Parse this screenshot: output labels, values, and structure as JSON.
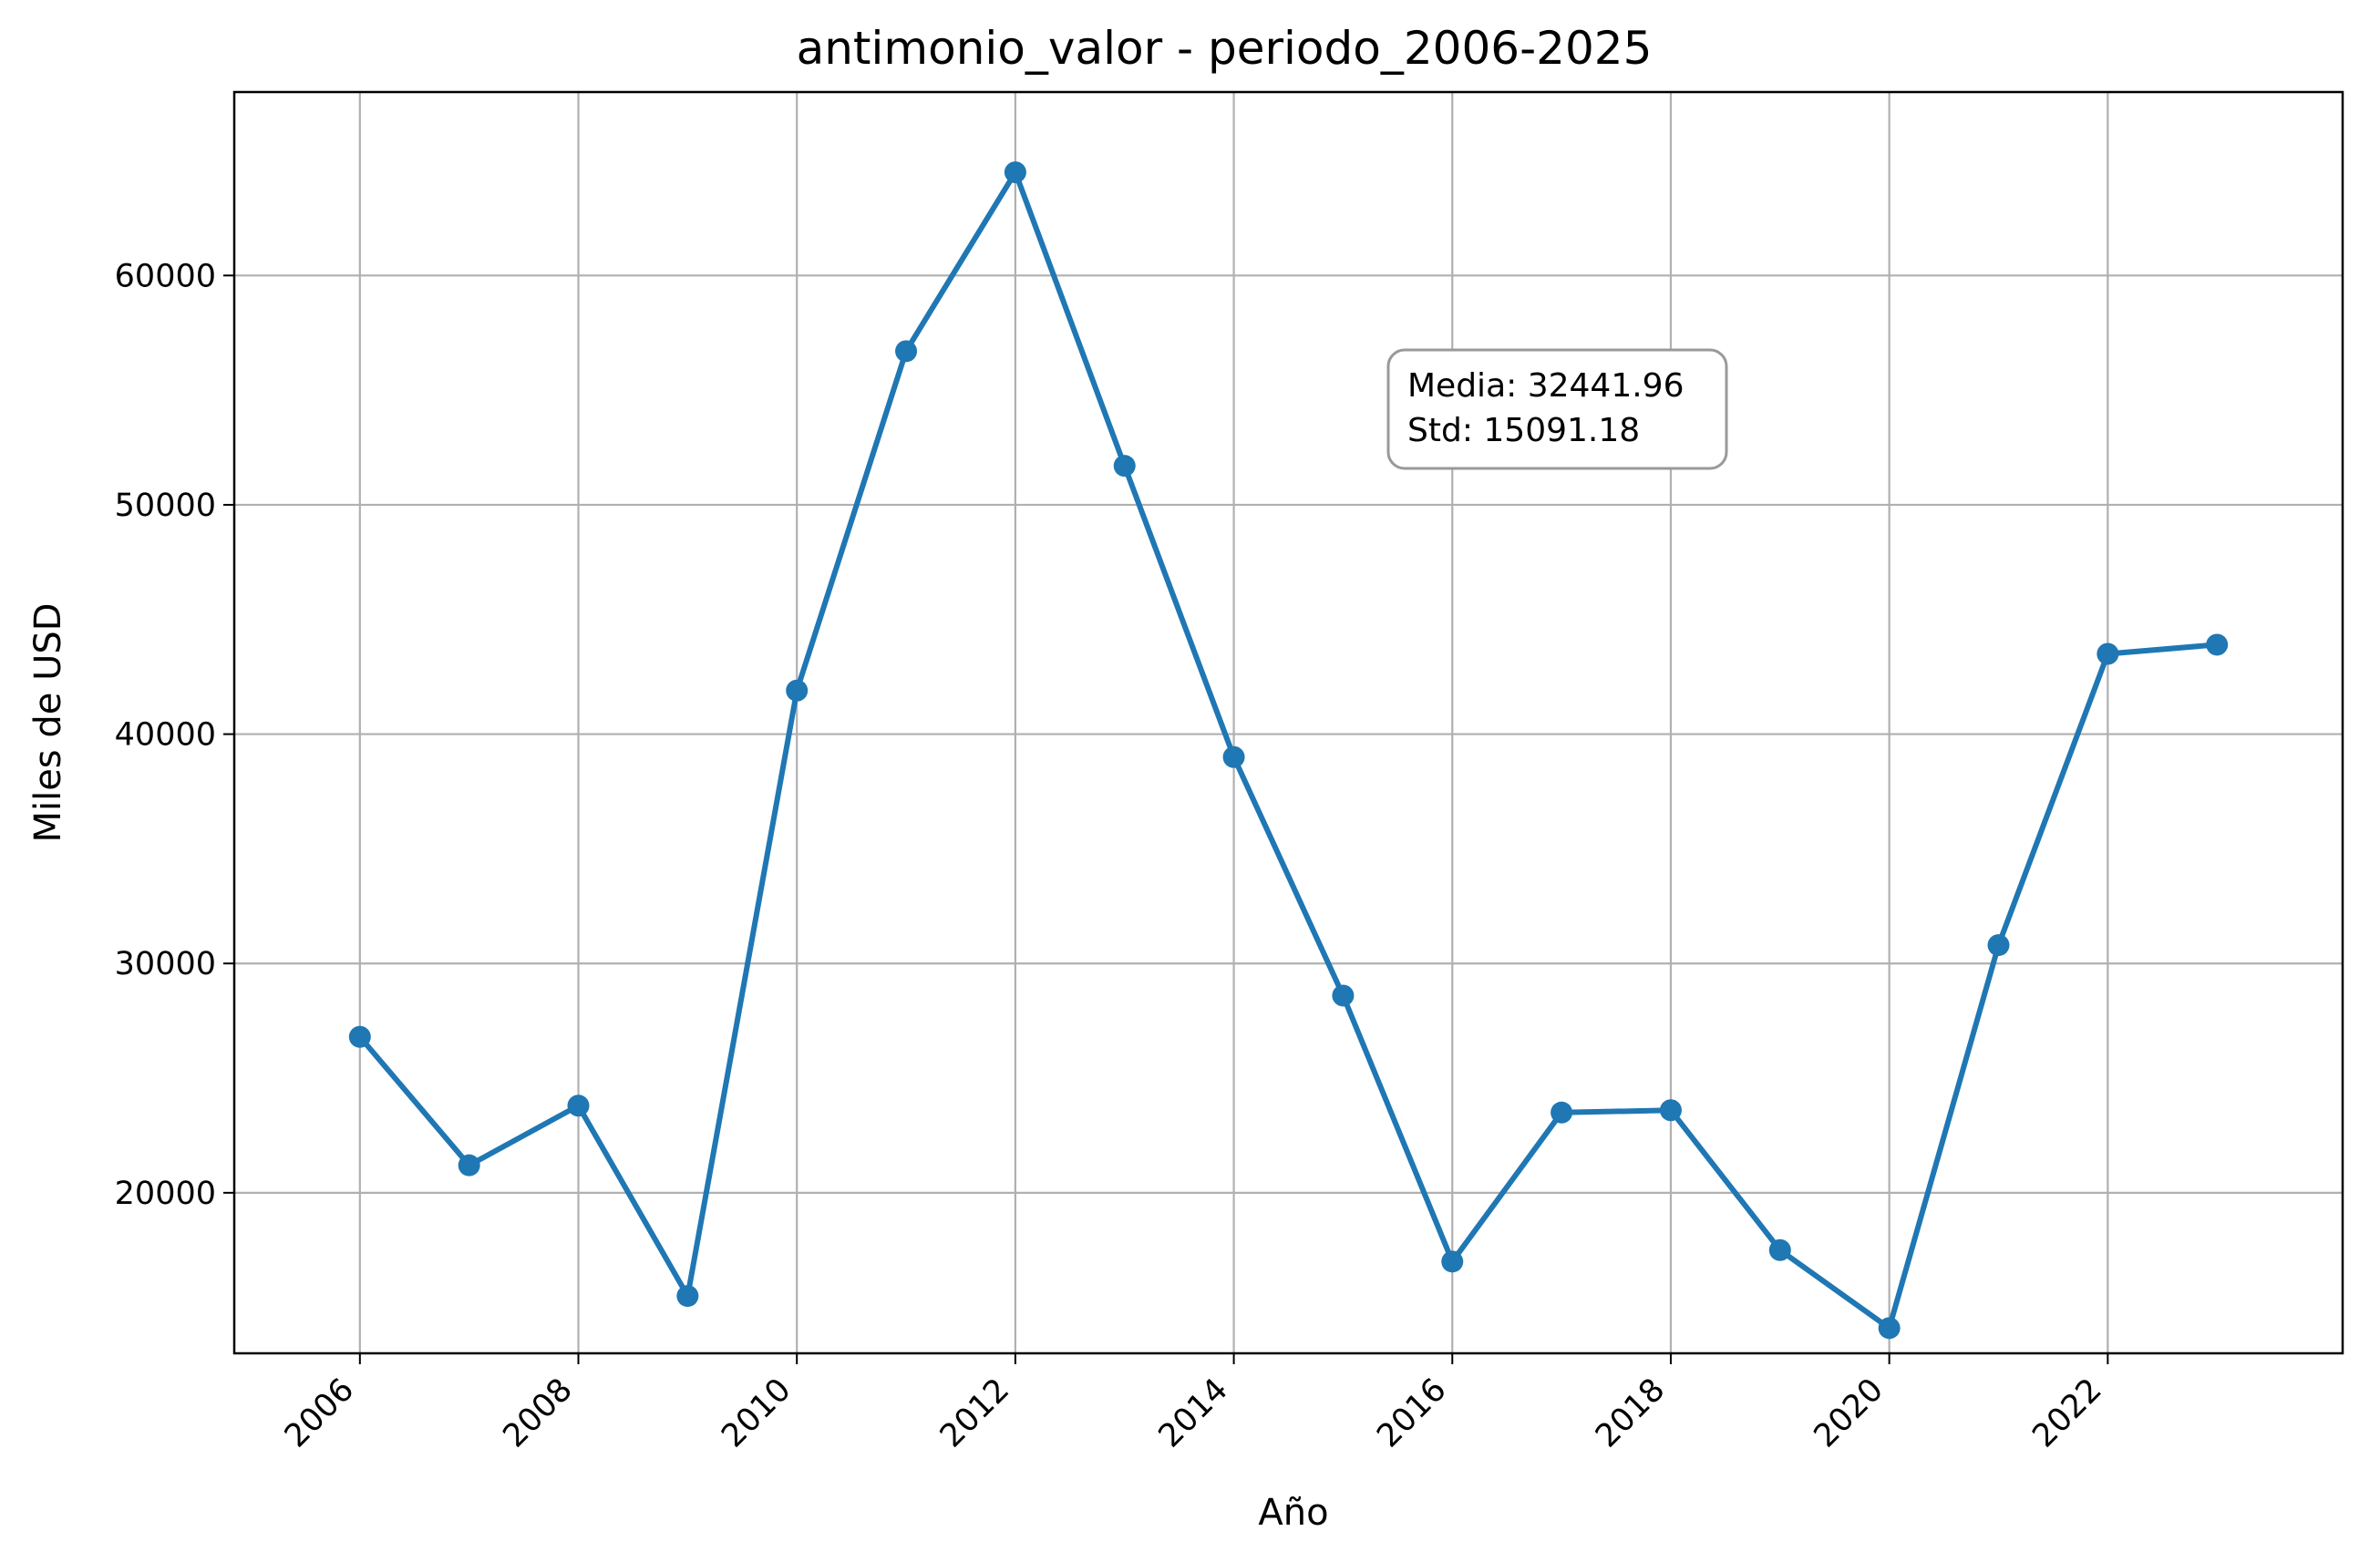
{
  "chart_data": {
    "type": "line",
    "title": "antimonio_valor - periodo_2006-2025",
    "xlabel": "Año",
    "ylabel": "Miles de USD",
    "x": [
      2006,
      2007,
      2008,
      2009,
      2010,
      2011,
      2012,
      2013,
      2014,
      2015,
      2016,
      2017,
      2018,
      2019,
      2020,
      2021,
      2022,
      2023
    ],
    "series": [
      {
        "values": [
          26800,
          21200,
          23800,
          15500,
          41900,
          56700,
          64500,
          51700,
          39000,
          28600,
          17000,
          23500,
          23600,
          17500,
          14100,
          30800,
          43500,
          43900
        ],
        "color": "#1f77b4"
      }
    ],
    "xlim": [
      2004.85,
      2024.15
    ],
    "ylim": [
      13000,
      68000
    ],
    "x_ticks": [
      2006,
      2008,
      2010,
      2012,
      2014,
      2016,
      2018,
      2020,
      2022
    ],
    "x_tick_labels": [
      "2006",
      "2008",
      "2010",
      "2012",
      "2014",
      "2016",
      "2018",
      "2020",
      "2022"
    ],
    "y_ticks": [
      20000,
      30000,
      40000,
      50000,
      60000
    ],
    "y_tick_labels": [
      "20000",
      "30000",
      "40000",
      "50000",
      "60000"
    ],
    "grid": true,
    "annotation": {
      "lines": [
        "Media: 32441.96",
        "Std: 15091.18"
      ],
      "placement": "upper-center-right"
    },
    "colors": {
      "line": "#1f77b4",
      "grid": "#b0b0b0",
      "annotation_border": "#999999"
    }
  }
}
